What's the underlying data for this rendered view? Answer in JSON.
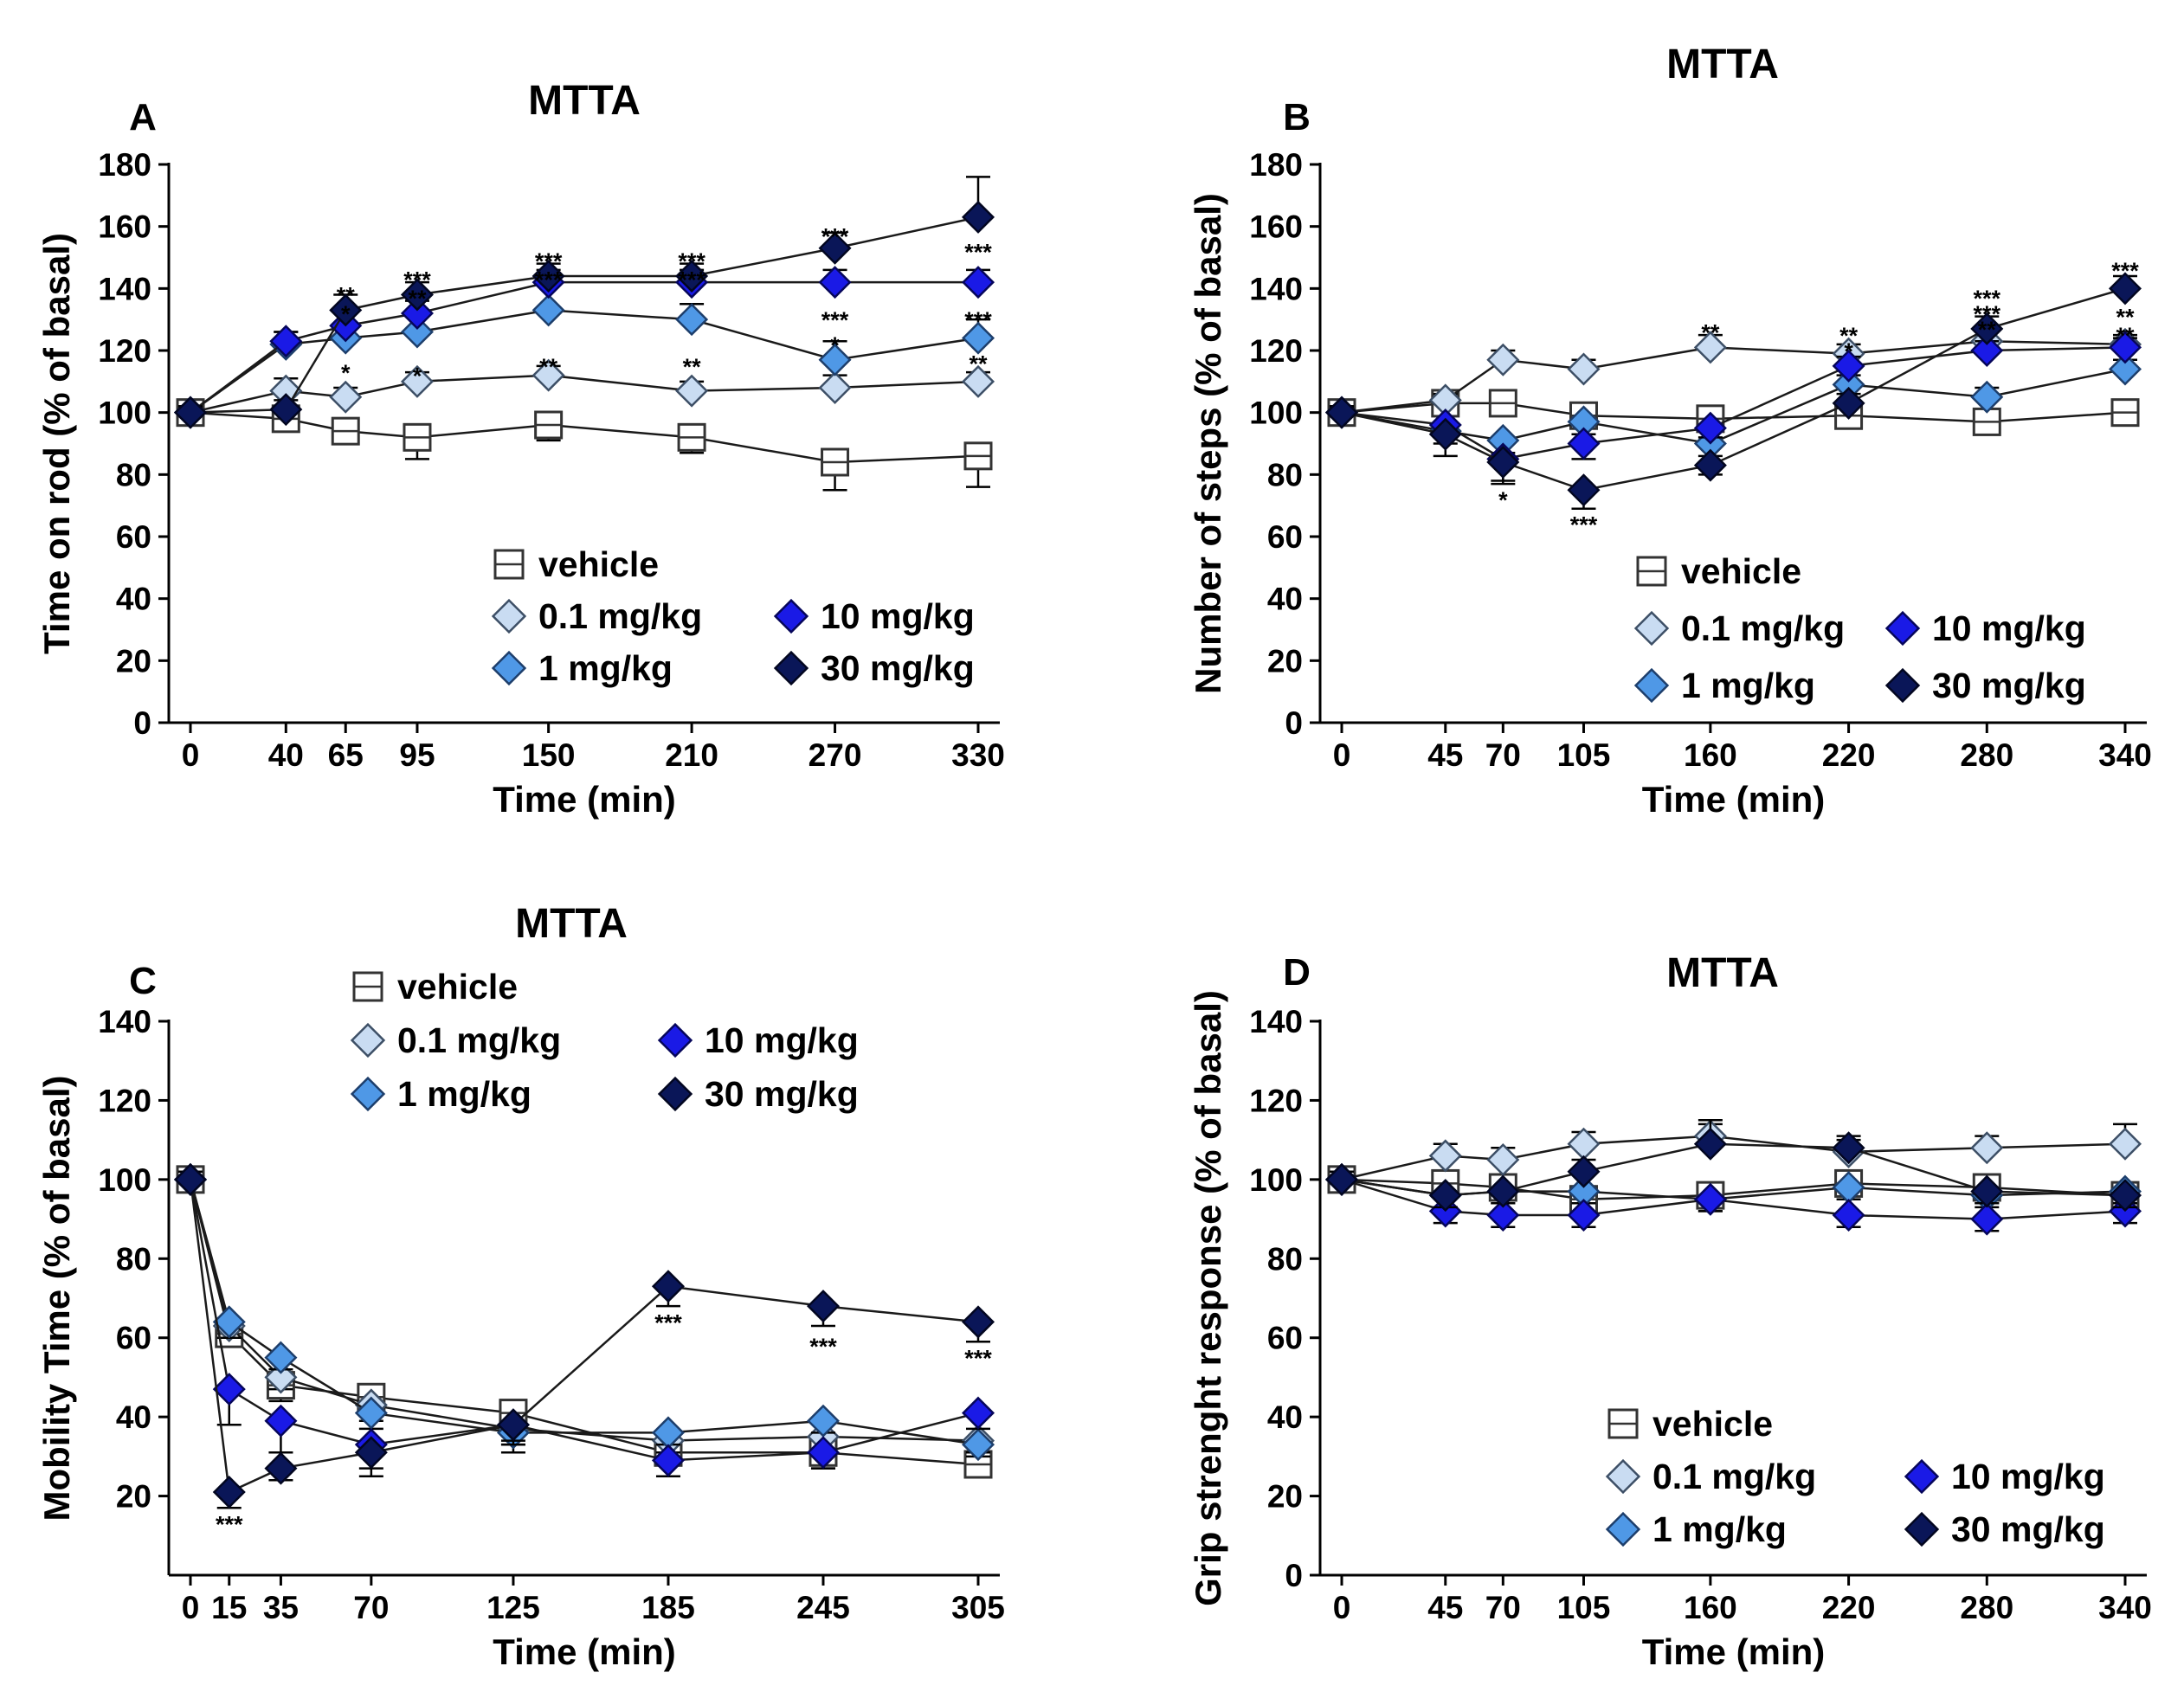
{
  "chart_data": [
    {
      "type": "line",
      "panel": "A",
      "title": "MTTA",
      "xlabel": "Time (min)",
      "ylabel": "Time on rod (% of basal)",
      "ylim": [
        0,
        180
      ],
      "yticks": [
        0,
        20,
        40,
        60,
        80,
        100,
        120,
        140,
        160,
        180
      ],
      "x": [
        0,
        40,
        65,
        95,
        150,
        210,
        270,
        330
      ],
      "xtick_labels": [
        "0",
        "40",
        "65",
        "95",
        "150",
        "210",
        "270",
        "330"
      ],
      "legend_position": "center",
      "series": [
        {
          "name": "vehicle",
          "values": [
            100,
            98,
            94,
            92,
            96,
            92,
            84,
            86
          ],
          "errors": [
            3,
            4,
            4,
            7,
            5,
            5,
            9,
            10
          ]
        },
        {
          "name": "0.1 mg/kg",
          "values": [
            100,
            107,
            105,
            110,
            112,
            107,
            108,
            110
          ],
          "errors": [
            2,
            4,
            3,
            3,
            3,
            3,
            4,
            3
          ]
        },
        {
          "name": "1 mg/kg",
          "values": [
            100,
            122,
            124,
            126,
            133,
            130,
            117,
            124
          ],
          "errors": [
            2,
            4,
            5,
            6,
            12,
            5,
            6,
            6
          ]
        },
        {
          "name": "10 mg/kg",
          "values": [
            100,
            123,
            128,
            132,
            142,
            142,
            142,
            142
          ],
          "errors": [
            2,
            3,
            4,
            4,
            4,
            4,
            4,
            4
          ]
        },
        {
          "name": "30 mg/kg",
          "values": [
            100,
            101,
            133,
            138,
            144,
            144,
            153,
            163
          ],
          "errors": [
            2,
            3,
            5,
            4,
            4,
            4,
            5,
            13
          ]
        }
      ],
      "annotations": [
        {
          "x": 65,
          "y": 138,
          "text": "**"
        },
        {
          "x": 65,
          "y": 132,
          "text": "*"
        },
        {
          "x": 65,
          "y": 113,
          "text": "*"
        },
        {
          "x": 95,
          "y": 143,
          "text": "***"
        },
        {
          "x": 95,
          "y": 137,
          "text": "**"
        },
        {
          "x": 95,
          "y": 112,
          "text": "*"
        },
        {
          "x": 150,
          "y": 149,
          "text": "***"
        },
        {
          "x": 150,
          "y": 143,
          "text": "***"
        },
        {
          "x": 150,
          "y": 115,
          "text": "**"
        },
        {
          "x": 210,
          "y": 149,
          "text": "***"
        },
        {
          "x": 210,
          "y": 143,
          "text": "***"
        },
        {
          "x": 210,
          "y": 115,
          "text": "**"
        },
        {
          "x": 270,
          "y": 157,
          "text": "***"
        },
        {
          "x": 270,
          "y": 130,
          "text": "***"
        },
        {
          "x": 270,
          "y": 122,
          "text": "*"
        },
        {
          "x": 330,
          "y": 152,
          "text": "***"
        },
        {
          "x": 330,
          "y": 130,
          "text": "***"
        },
        {
          "x": 330,
          "y": 116,
          "text": "**"
        }
      ]
    },
    {
      "type": "line",
      "panel": "B",
      "title": "MTTA",
      "xlabel": "Time (min)",
      "ylabel": "Number of steps (% of basal)",
      "ylim": [
        0,
        180
      ],
      "yticks": [
        0,
        20,
        40,
        60,
        80,
        100,
        120,
        140,
        160,
        180
      ],
      "x": [
        0,
        45,
        70,
        105,
        160,
        220,
        280,
        340
      ],
      "xtick_labels": [
        "0",
        "45",
        "70",
        "105",
        "160",
        "220",
        "280",
        "340"
      ],
      "legend_position": "bottom-right",
      "series": [
        {
          "name": "vehicle",
          "values": [
            100,
            103,
            103,
            99,
            98,
            99,
            97,
            100
          ],
          "errors": [
            2,
            3,
            4,
            3,
            3,
            3,
            3,
            3
          ]
        },
        {
          "name": "0.1 mg/kg",
          "values": [
            100,
            104,
            117,
            114,
            121,
            119,
            123,
            122
          ],
          "errors": [
            2,
            2,
            3,
            3,
            4,
            3,
            3,
            3
          ]
        },
        {
          "name": "1 mg/kg",
          "values": [
            100,
            94,
            91,
            97,
            90,
            109,
            105,
            114
          ],
          "errors": [
            2,
            4,
            4,
            4,
            4,
            3,
            3,
            3
          ]
        },
        {
          "name": "10 mg/kg",
          "values": [
            100,
            96,
            85,
            90,
            95,
            115,
            120,
            121
          ],
          "errors": [
            2,
            4,
            7,
            5,
            3,
            3,
            3,
            3
          ]
        },
        {
          "name": "30 mg/kg",
          "values": [
            100,
            93,
            84,
            75,
            83,
            103,
            127,
            140
          ],
          "errors": [
            2,
            7,
            7,
            6,
            3,
            3,
            4,
            4
          ]
        }
      ],
      "annotations": [
        {
          "x": 70,
          "y": 72,
          "text": "*"
        },
        {
          "x": 105,
          "y": 64,
          "text": "***"
        },
        {
          "x": 160,
          "y": 126,
          "text": "**"
        },
        {
          "x": 220,
          "y": 125,
          "text": "**"
        },
        {
          "x": 220,
          "y": 120,
          "text": "*"
        },
        {
          "x": 280,
          "y": 137,
          "text": "***"
        },
        {
          "x": 280,
          "y": 132,
          "text": "***"
        },
        {
          "x": 280,
          "y": 127,
          "text": "**"
        },
        {
          "x": 340,
          "y": 146,
          "text": "***"
        },
        {
          "x": 340,
          "y": 131,
          "text": "**"
        },
        {
          "x": 340,
          "y": 125,
          "text": "**"
        }
      ]
    },
    {
      "type": "line",
      "panel": "C",
      "title": "MTTA",
      "xlabel": "Time (min)",
      "ylabel": "Mobility Time (% of basal)",
      "ylim": [
        0,
        140
      ],
      "yticks": [
        20,
        40,
        60,
        80,
        100,
        120,
        140
      ],
      "x": [
        0,
        15,
        35,
        70,
        125,
        185,
        245,
        305
      ],
      "xtick_labels": [
        "0",
        "15",
        "35",
        "70",
        "125",
        "185",
        "245",
        "305"
      ],
      "legend_position": "top",
      "series": [
        {
          "name": "vehicle",
          "values": [
            100,
            61,
            48,
            45,
            41,
            31,
            31,
            28
          ],
          "errors": [
            2,
            3,
            4,
            4,
            4,
            3,
            4,
            3
          ]
        },
        {
          "name": "0.1 mg/kg",
          "values": [
            100,
            63,
            50,
            43,
            37,
            34,
            35,
            34
          ],
          "errors": [
            2,
            3,
            3,
            4,
            4,
            3,
            4,
            3
          ]
        },
        {
          "name": "1 mg/kg",
          "values": [
            100,
            64,
            55,
            41,
            36,
            36,
            39,
            33
          ],
          "errors": [
            2,
            4,
            3,
            4,
            5,
            3,
            3,
            3
          ]
        },
        {
          "name": "10 mg/kg",
          "values": [
            100,
            47,
            39,
            33,
            38,
            29,
            31,
            41
          ],
          "errors": [
            2,
            9,
            8,
            6,
            4,
            4,
            4,
            4
          ]
        },
        {
          "name": "30 mg/kg",
          "values": [
            100,
            21,
            27,
            31,
            38,
            73,
            68,
            64
          ],
          "errors": [
            2,
            4,
            3,
            6,
            5,
            5,
            5,
            5
          ]
        }
      ],
      "annotations": [
        {
          "x": 15,
          "y": 13,
          "text": "***"
        },
        {
          "x": 185,
          "y": 64,
          "text": "***"
        },
        {
          "x": 245,
          "y": 58,
          "text": "***"
        },
        {
          "x": 305,
          "y": 55,
          "text": "***"
        }
      ]
    },
    {
      "type": "line",
      "panel": "D",
      "title": "MTTA",
      "xlabel": "Time (min)",
      "ylabel": "Grip strenght response (% of basal)",
      "ylim": [
        0,
        140
      ],
      "yticks": [
        0,
        20,
        40,
        60,
        80,
        100,
        120,
        140
      ],
      "x": [
        0,
        45,
        70,
        105,
        160,
        220,
        280,
        340
      ],
      "xtick_labels": [
        "0",
        "45",
        "70",
        "105",
        "160",
        "220",
        "280",
        "340"
      ],
      "legend_position": "bottom-right",
      "series": [
        {
          "name": "vehicle",
          "values": [
            100,
            99,
            98,
            95,
            96,
            99,
            98,
            96
          ],
          "errors": [
            2,
            3,
            3,
            3,
            3,
            3,
            4,
            3
          ]
        },
        {
          "name": "0.1 mg/kg",
          "values": [
            100,
            106,
            105,
            109,
            111,
            107,
            108,
            109
          ],
          "errors": [
            2,
            3,
            3,
            3,
            3,
            3,
            3,
            5
          ]
        },
        {
          "name": "1 mg/kg",
          "values": [
            100,
            96,
            97,
            97,
            95,
            98,
            96,
            97
          ],
          "errors": [
            2,
            3,
            3,
            3,
            3,
            3,
            3,
            3
          ]
        },
        {
          "name": "10 mg/kg",
          "values": [
            100,
            92,
            91,
            91,
            95,
            91,
            90,
            92
          ],
          "errors": [
            2,
            3,
            3,
            3,
            3,
            3,
            3,
            3
          ]
        },
        {
          "name": "30 mg/kg",
          "values": [
            100,
            96,
            97,
            102,
            109,
            108,
            97,
            96
          ],
          "errors": [
            2,
            3,
            3,
            3,
            6,
            3,
            3,
            3
          ]
        }
      ],
      "annotations": []
    }
  ],
  "series_styles": {
    "vehicle": {
      "marker": "square",
      "fill": "#ffffff",
      "stroke": "#333333"
    },
    "0.1 mg/kg": {
      "marker": "diamond",
      "fill": "#c9dcf2",
      "stroke": "#3d4f66"
    },
    "1 mg/kg": {
      "marker": "diamond",
      "fill": "#4f98e6",
      "stroke": "#1d3e6b"
    },
    "10 mg/kg": {
      "marker": "diamond",
      "fill": "#1a1ae6",
      "stroke": "#06065a"
    },
    "30 mg/kg": {
      "marker": "diamond",
      "fill": "#0a1658",
      "stroke": "#020620"
    }
  },
  "legend_order": [
    "vehicle",
    "0.1 mg/kg",
    "10 mg/kg",
    "1 mg/kg",
    "30 mg/kg"
  ]
}
